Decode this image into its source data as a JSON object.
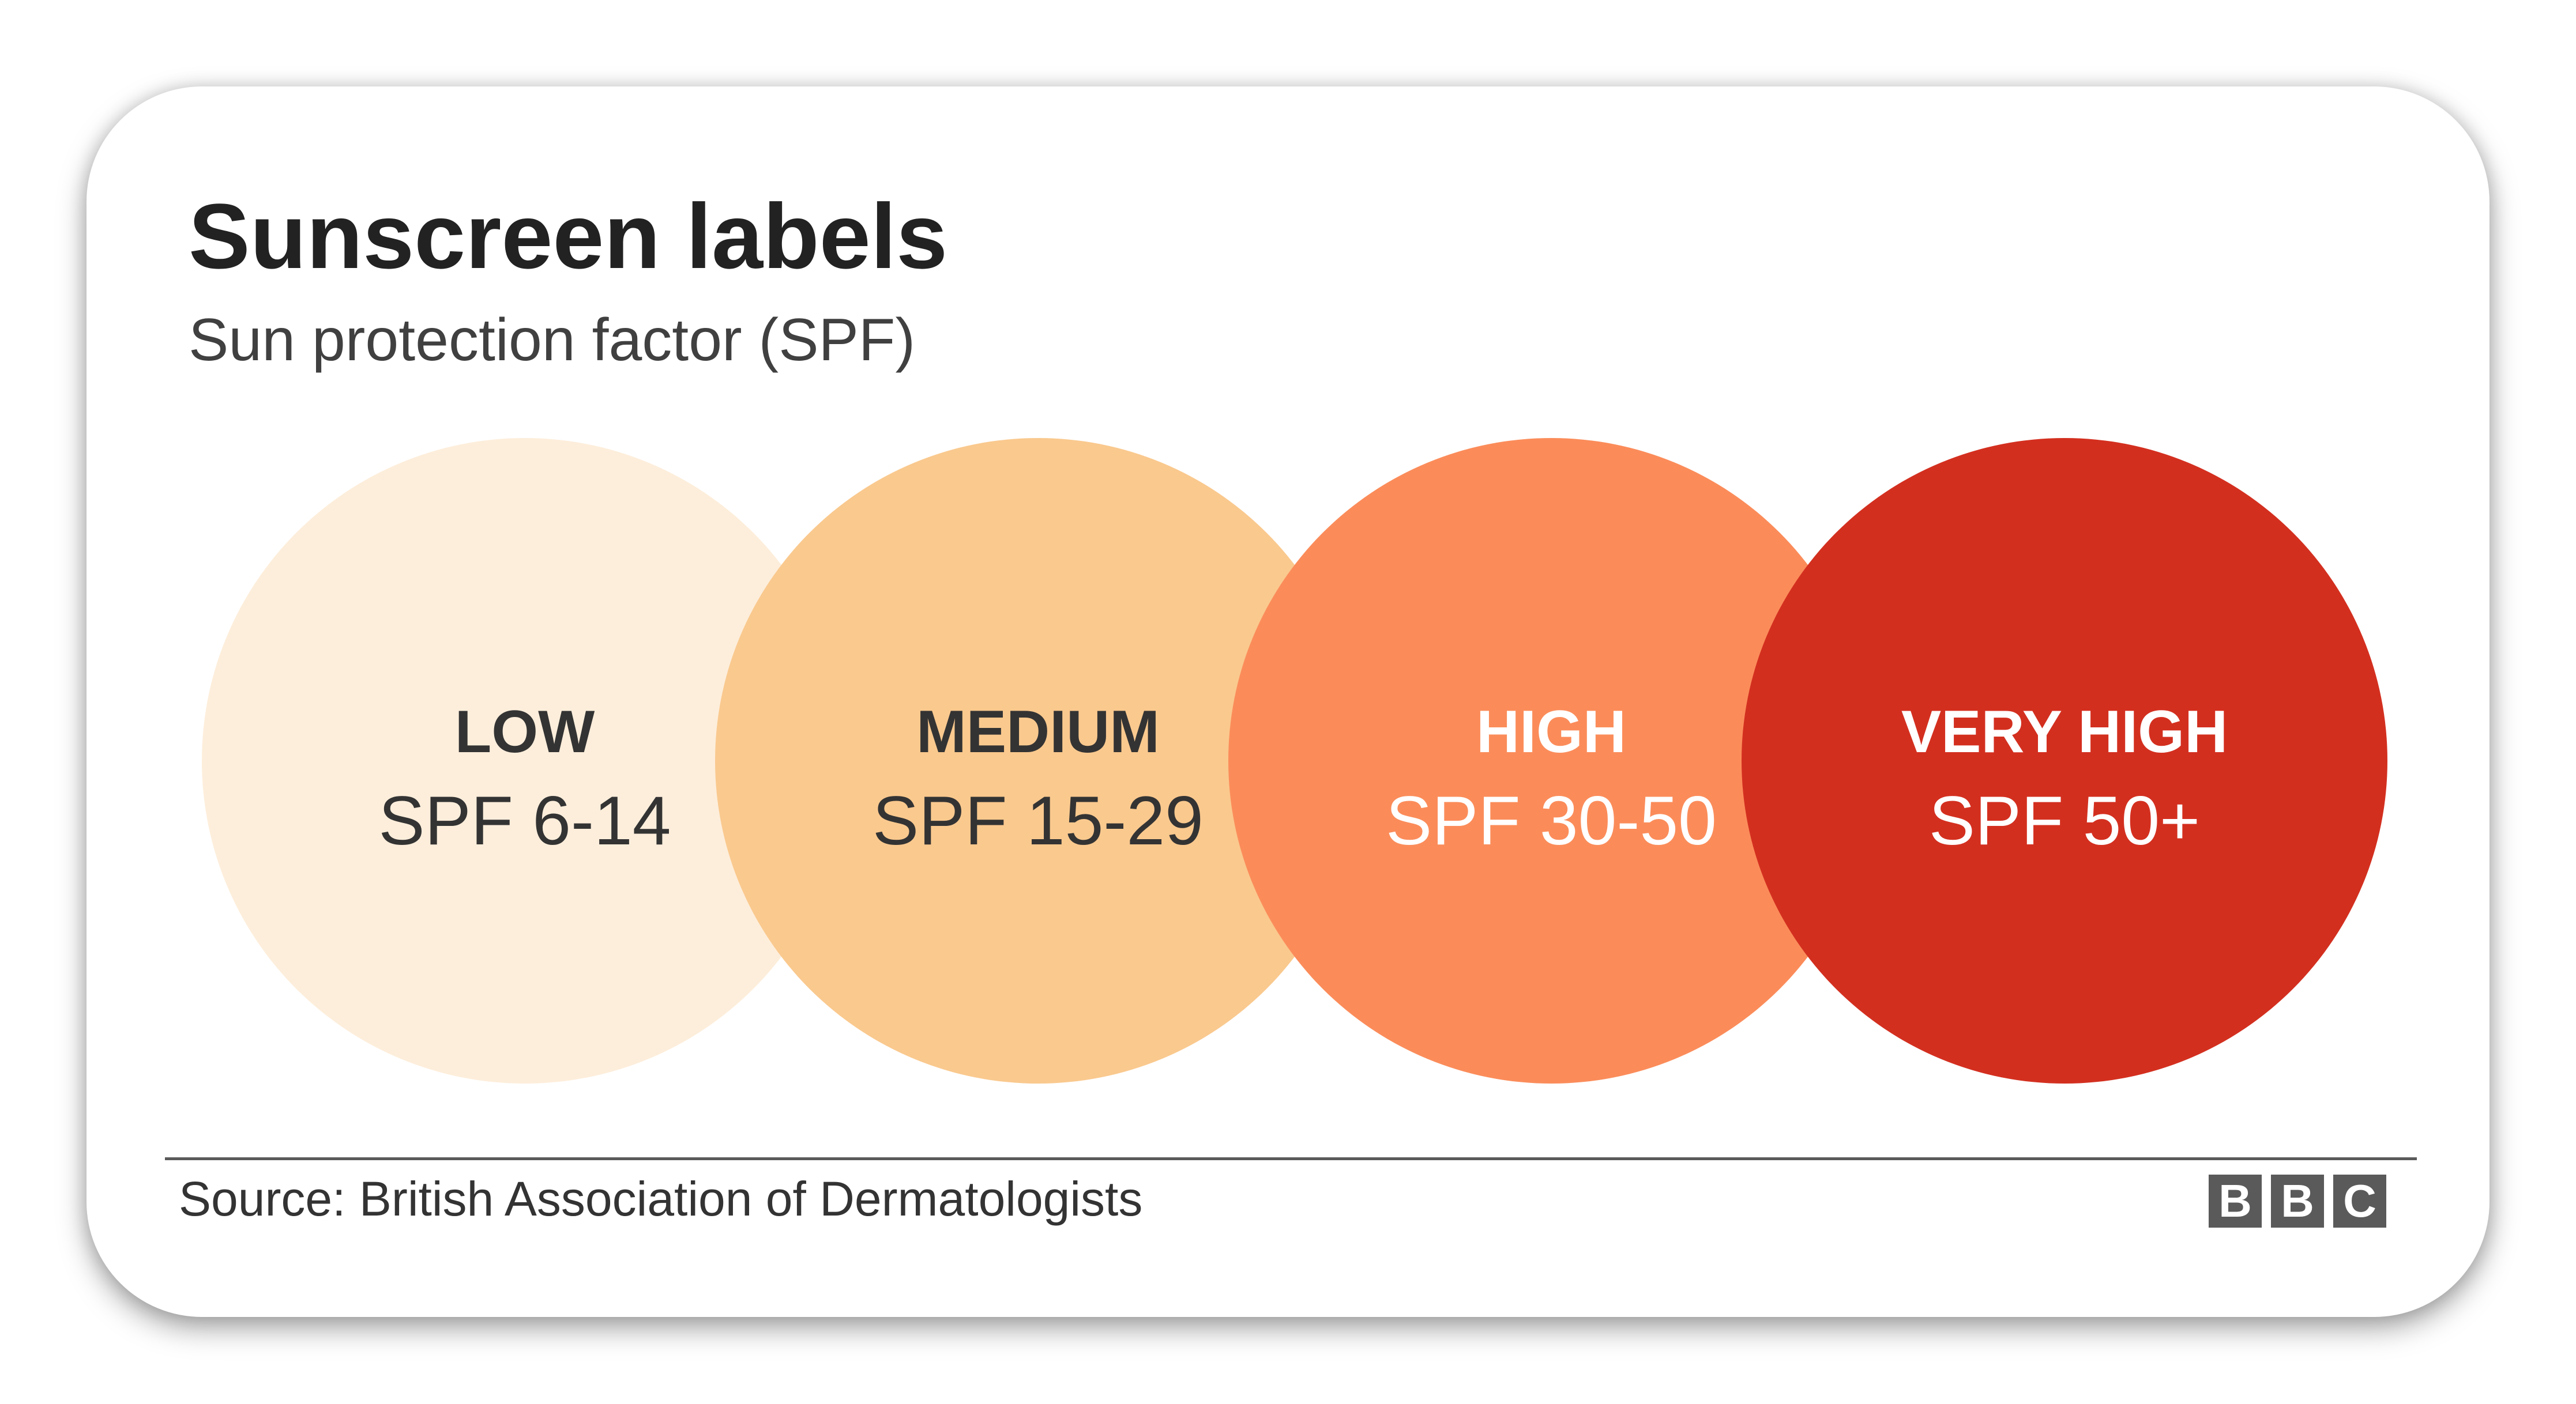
{
  "header": {
    "title": "Sunscreen labels",
    "subtitle": "Sun protection factor (SPF)"
  },
  "levels": [
    {
      "name": "LOW",
      "spf": "SPF 6-14",
      "color": "#fdeedb",
      "text_color": "#333333"
    },
    {
      "name": "MEDIUM",
      "spf": "SPF 15-29",
      "color": "#fac98e",
      "text_color": "#333333"
    },
    {
      "name": "HIGH",
      "spf": "SPF 30-50",
      "color": "#fb8c5a",
      "text_color": "#ffffff"
    },
    {
      "name": "VERY HIGH",
      "spf": "SPF 50+",
      "color": "#d32f1f",
      "text_color": "#ffffff"
    }
  ],
  "footer": {
    "source": "Source: British Association of Dermatologists",
    "logo": [
      "B",
      "B",
      "C"
    ]
  }
}
